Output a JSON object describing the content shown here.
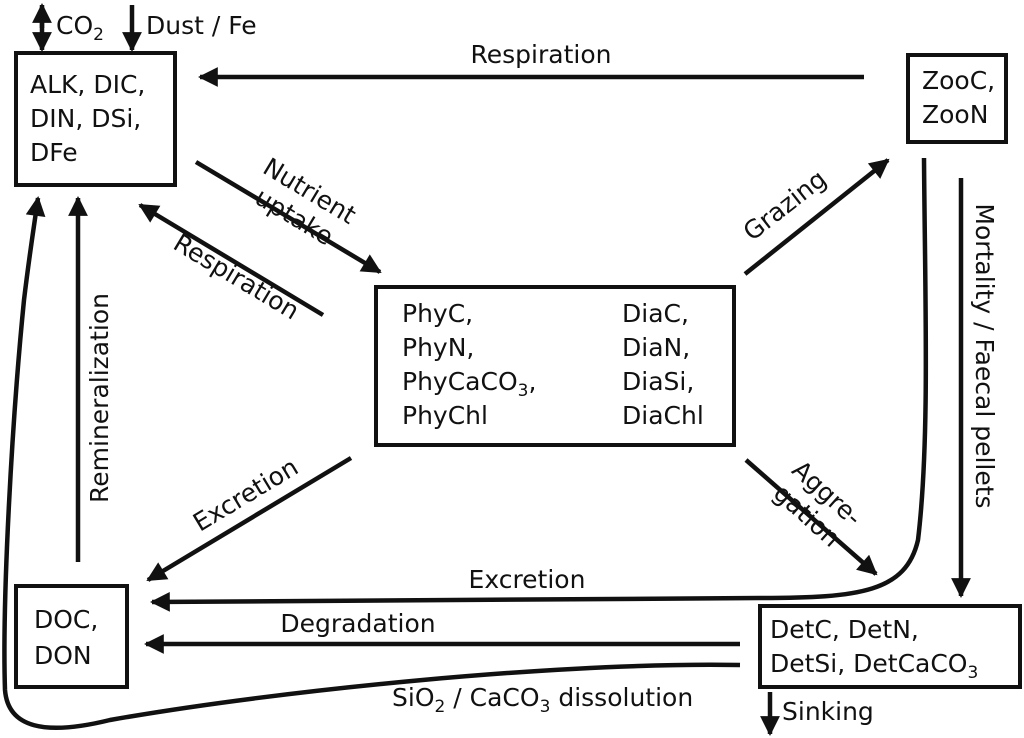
{
  "top": {
    "co2": "CO",
    "co2_sub": "2",
    "dust": "Dust / Fe"
  },
  "nodes": {
    "nutrients": {
      "lines": [
        "ALK, DIC,",
        "DIN, DSi,",
        "DFe"
      ]
    },
    "zooplankton": {
      "lines": [
        "ZooC,",
        "ZooN"
      ]
    },
    "phytoplankton": {
      "phy": [
        "PhyC,",
        "PhyN,",
        "PhyCaCO",
        "PhyChl"
      ],
      "phy_sub": "3",
      "phy_sub_suffix": ",",
      "dia": [
        "DiaC,",
        "DiaN,",
        "DiaSi,",
        "DiaChl"
      ]
    },
    "doc": {
      "lines": [
        "DOC,",
        "DON"
      ]
    },
    "detritus": {
      "line1": "DetC, DetN,",
      "line2": "DetSi, DetCaCO",
      "line2_sub": "3"
    }
  },
  "flows": {
    "respiration_top": "Respiration",
    "nutrient_uptake_1": "Nutrient",
    "nutrient_uptake_2": "uptake",
    "respiration_phy": "Respiration",
    "grazing": "Grazing",
    "mortality": "Mortality / Faecal pellets",
    "remineralization": "Remineralization",
    "excretion_phy": "Excretion",
    "aggregation_1": "Aggre-",
    "aggregation_2": "gation",
    "excretion_zoo": "Excretion",
    "degradation": "Degradation",
    "dissolution_a": "SiO",
    "dissolution_a_sub": "2",
    "dissolution_b": " / CaCO",
    "dissolution_b_sub": "3",
    "dissolution_c": " dissolution",
    "sinking": "Sinking"
  }
}
